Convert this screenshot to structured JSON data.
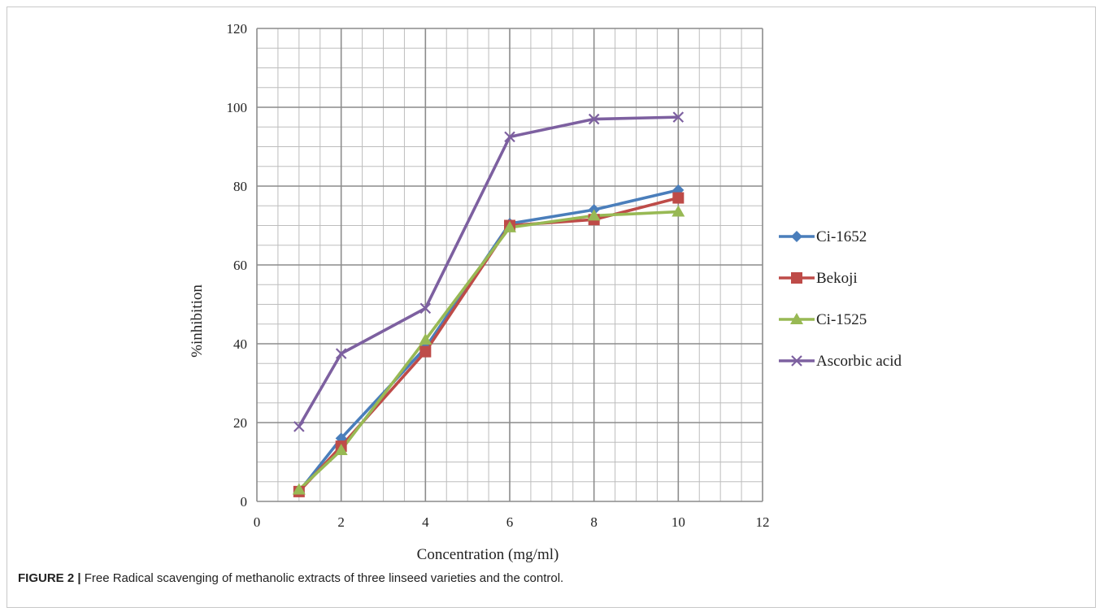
{
  "caption": {
    "label": "FIGURE 2 |",
    "text": " Free Radical scavenging of methanolic extracts of three linseed varieties and the control."
  },
  "chart_data": {
    "type": "line",
    "title": "",
    "xlabel": "Concentration (mg/ml)",
    "ylabel": "%inhibition",
    "xlim": [
      0,
      12
    ],
    "ylim": [
      0,
      120
    ],
    "x_ticks": [
      "0",
      "2",
      "4",
      "6",
      "8",
      "10",
      "12"
    ],
    "y_ticks": [
      "0",
      "20",
      "40",
      "60",
      "80",
      "100",
      "120"
    ],
    "grid": true,
    "legend_position": "right",
    "x": [
      1,
      2,
      4,
      6,
      8,
      10
    ],
    "series": [
      {
        "name": "Ci-1652",
        "marker": "diamond",
        "color": "#4a7ebb",
        "values": [
          2.5,
          16,
          39,
          70.5,
          74,
          79
        ]
      },
      {
        "name": "Bekoji",
        "marker": "square",
        "color": "#be4b48",
        "values": [
          2.5,
          14,
          38,
          70,
          71.5,
          77
        ]
      },
      {
        "name": "Ci-1525",
        "marker": "triangle",
        "color": "#98b954",
        "values": [
          3,
          13,
          41,
          69.5,
          72.5,
          73.5
        ]
      },
      {
        "name": "Ascorbic acid",
        "marker": "x",
        "color": "#7d60a0",
        "values": [
          19,
          37.5,
          49,
          92.5,
          97,
          97.5
        ]
      }
    ]
  }
}
